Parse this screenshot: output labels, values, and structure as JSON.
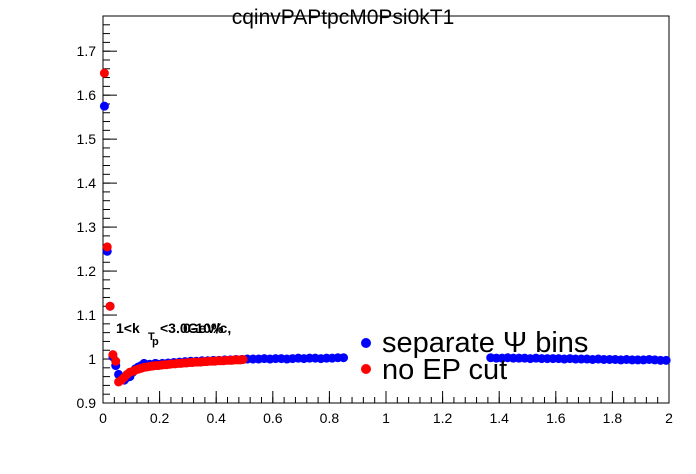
{
  "chart_data": {
    "type": "scatter",
    "title": "cqinvPAPtpcM0Psi0kT1",
    "xlabel": "",
    "ylabel": "",
    "xlim": [
      0,
      2
    ],
    "ylim": [
      0.9,
      1.78
    ],
    "x_ticks": [
      "0",
      "0.2",
      "0.4",
      "0.6",
      "0.8",
      "1",
      "1.2",
      "1.4",
      "1.6",
      "1.8",
      "2"
    ],
    "y_ticks": [
      "0.9",
      "1",
      "1.1",
      "1.2",
      "1.3",
      "1.4",
      "1.5",
      "1.6",
      "1.7"
    ],
    "annotations": [
      "1<k",
      "T",
      "<3.0GeV/c,",
      "p",
      "0-10%"
    ],
    "legend_placement": "bottom-right",
    "series": [
      {
        "name": "separate Ψ bins",
        "color": "#0000ff",
        "x": [
          0.005,
          0.015,
          0.025,
          0.035,
          0.045,
          0.055,
          0.065,
          0.075,
          0.085,
          0.095,
          0.105,
          0.115,
          0.125,
          0.135,
          0.145,
          0.155,
          0.165,
          0.175,
          0.185,
          0.195,
          0.21,
          0.23,
          0.25,
          0.27,
          0.29,
          0.31,
          0.33,
          0.35,
          0.37,
          0.39,
          0.41,
          0.43,
          0.45,
          0.47,
          0.49,
          0.51,
          0.53,
          0.55,
          0.57,
          0.59,
          0.61,
          0.63,
          0.65,
          0.67,
          0.69,
          0.71,
          0.73,
          0.75,
          0.77,
          0.79,
          0.81,
          0.83,
          0.85,
          1.37,
          1.39,
          1.41,
          1.43,
          1.45,
          1.47,
          1.49,
          1.51,
          1.53,
          1.55,
          1.57,
          1.59,
          1.61,
          1.63,
          1.65,
          1.67,
          1.69,
          1.71,
          1.73,
          1.75,
          1.77,
          1.79,
          1.81,
          1.83,
          1.85,
          1.87,
          1.89,
          1.91,
          1.93,
          1.95,
          1.97,
          1.99
        ],
        "y": [
          1.575,
          1.245,
          1.12,
          1.005,
          0.985,
          0.965,
          0.958,
          0.952,
          0.958,
          0.96,
          0.97,
          0.978,
          0.982,
          0.985,
          0.99,
          0.985,
          0.988,
          0.986,
          0.99,
          0.988,
          0.99,
          0.991,
          0.992,
          0.993,
          0.994,
          0.995,
          0.995,
          0.996,
          0.996,
          0.997,
          0.997,
          0.998,
          0.998,
          0.999,
          0.999,
          1.0,
          1.0,
          1.0,
          1.001,
          1.0,
          1.001,
          1.001,
          1.0,
          1.001,
          1.002,
          1.001,
          1.002,
          1.002,
          1.001,
          1.002,
          1.002,
          1.003,
          1.003,
          1.003,
          1.002,
          1.002,
          1.003,
          1.002,
          1.002,
          1.002,
          1.001,
          1.002,
          1.001,
          1.001,
          1.001,
          1.001,
          1.0,
          1.001,
          1.0,
          1.0,
          1.0,
          0.999,
          1.0,
          0.999,
          0.999,
          0.999,
          0.998,
          0.999,
          0.998,
          0.998,
          0.998,
          0.999,
          0.998,
          0.997,
          0.997
        ]
      },
      {
        "name": "no EP cut",
        "color": "#ff0000",
        "x": [
          0.005,
          0.015,
          0.025,
          0.035,
          0.045,
          0.055,
          0.065,
          0.075,
          0.085,
          0.095,
          0.105,
          0.115,
          0.125,
          0.135,
          0.145,
          0.155,
          0.165,
          0.175,
          0.185,
          0.195,
          0.205,
          0.215,
          0.225,
          0.235,
          0.245,
          0.255,
          0.265,
          0.275,
          0.285,
          0.295,
          0.305,
          0.315,
          0.325,
          0.335,
          0.345,
          0.355,
          0.365,
          0.375,
          0.385,
          0.395,
          0.405,
          0.415,
          0.425,
          0.435,
          0.445,
          0.455,
          0.465,
          0.475,
          0.485,
          0.495
        ],
        "y": [
          1.65,
          1.255,
          1.12,
          1.01,
          0.995,
          0.948,
          0.952,
          0.958,
          0.965,
          0.97,
          0.972,
          0.975,
          0.977,
          0.979,
          0.981,
          0.982,
          0.983,
          0.984,
          0.985,
          0.985,
          0.986,
          0.987,
          0.987,
          0.988,
          0.989,
          0.989,
          0.99,
          0.99,
          0.991,
          0.991,
          0.992,
          0.992,
          0.993,
          0.993,
          0.993,
          0.994,
          0.994,
          0.995,
          0.995,
          0.995,
          0.996,
          0.996,
          0.996,
          0.997,
          0.997,
          0.997,
          0.998,
          0.998,
          0.998,
          0.999
        ]
      }
    ]
  }
}
